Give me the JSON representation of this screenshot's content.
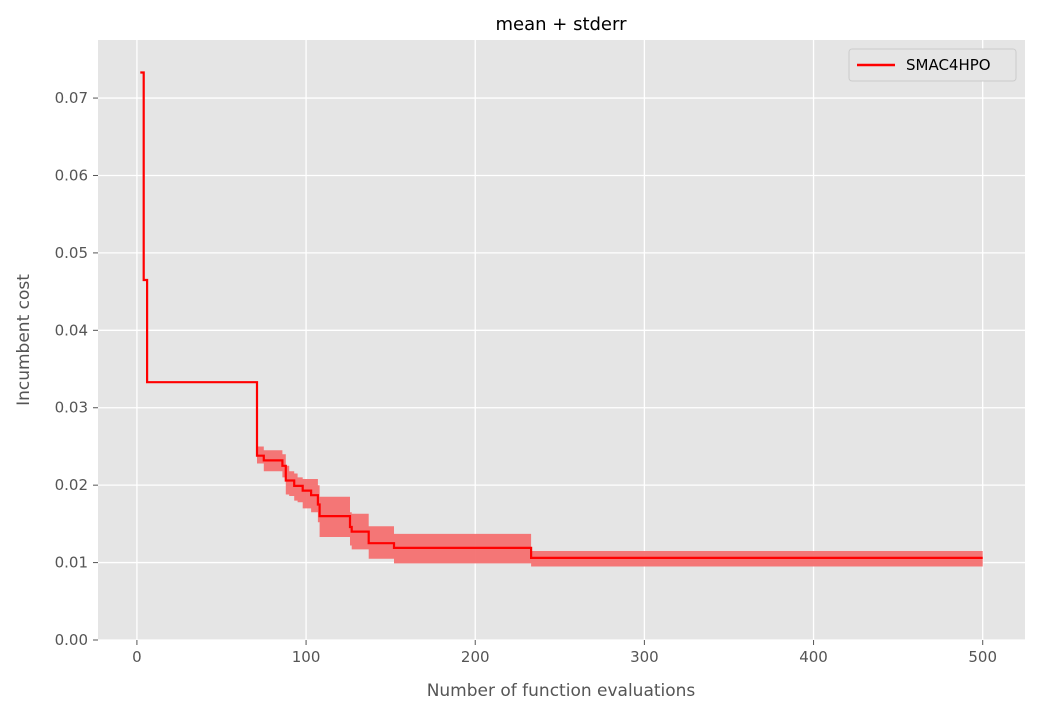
{
  "chart_data": {
    "type": "line",
    "title": "mean + stderr",
    "xlabel": "Number of function evaluations",
    "ylabel": "Incumbent cost",
    "xlim": [
      -23,
      525
    ],
    "ylim": [
      0,
      0.0775
    ],
    "xticks": [
      0,
      100,
      200,
      300,
      400,
      500
    ],
    "xtick_labels": [
      "0",
      "100",
      "200",
      "300",
      "400",
      "500"
    ],
    "yticks": [
      0,
      0.01,
      0.02,
      0.03,
      0.04,
      0.05,
      0.06,
      0.07
    ],
    "ytick_labels": [
      "0.00",
      "0.01",
      "0.02",
      "0.03",
      "0.04",
      "0.05",
      "0.06",
      "0.07"
    ],
    "grid": true,
    "legend_position": "top-right",
    "colors": {
      "background": "#e5e5e5",
      "grid": "#ffffff",
      "line": "#ff0000",
      "band": "#f47070"
    },
    "series": [
      {
        "name": "SMAC4HPO",
        "step": "post",
        "x": [
          2,
          4,
          6,
          71,
          73,
          75,
          86,
          88,
          90,
          93,
          95,
          98,
          103,
          107,
          108,
          126,
          127,
          131,
          137,
          151,
          152,
          232,
          233,
          500
        ],
        "mean": [
          0.0733,
          0.0465,
          0.0333,
          0.0238,
          0.0238,
          0.0232,
          0.0225,
          0.0206,
          0.0206,
          0.0199,
          0.0199,
          0.0193,
          0.0187,
          0.0175,
          0.016,
          0.0146,
          0.014,
          0.014,
          0.0125,
          0.0125,
          0.0119,
          0.0119,
          0.0106,
          0.0106
        ],
        "upper": [
          0.0733,
          0.0465,
          0.0333,
          0.025,
          0.025,
          0.0245,
          0.024,
          0.0225,
          0.0218,
          0.0215,
          0.021,
          0.0208,
          0.0208,
          0.02,
          0.0185,
          0.0165,
          0.0163,
          0.0163,
          0.0147,
          0.0147,
          0.0137,
          0.0137,
          0.0115,
          0.0115
        ],
        "lower": [
          0.0733,
          0.0465,
          0.0333,
          0.0228,
          0.0228,
          0.0218,
          0.021,
          0.0188,
          0.0186,
          0.018,
          0.0178,
          0.017,
          0.0165,
          0.0152,
          0.0133,
          0.0122,
          0.0117,
          0.0117,
          0.0105,
          0.0105,
          0.0099,
          0.0099,
          0.0095,
          0.0095
        ]
      }
    ]
  }
}
